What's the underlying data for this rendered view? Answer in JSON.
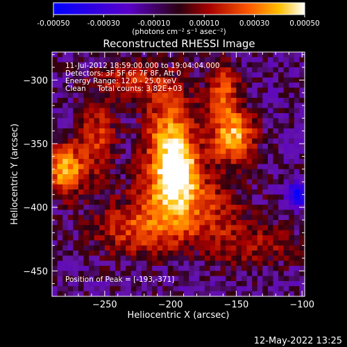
{
  "chart_data": {
    "type": "heatmap",
    "title": "Reconstructed RHESSI Image",
    "xlabel": "Heliocentric X (arcsec)",
    "ylabel": "Heliocentric Y (arcsec)",
    "xlim": [
      -290,
      -98
    ],
    "ylim": [
      -470,
      -278
    ],
    "x_ticks": [
      -250,
      -200,
      -150,
      -100
    ],
    "y_ticks": [
      -300,
      -350,
      -400,
      -450
    ],
    "colorbar": {
      "min": -0.0005,
      "max": 0.0005,
      "ticks": [
        "-0.00050",
        "-0.00030",
        "-0.00010",
        "0.00010",
        "0.00030",
        "0.00050"
      ],
      "units_label": "(photons cm⁻² s⁻¹ asec⁻²)"
    },
    "annotations": [
      "11-Jul-2012 18:59:00.000 to 19:04:04.000",
      "Detectors: 3F 5F 6F 7F 8F, Att 0",
      "Energy Range: 12.0 - 25.0 keV",
      "Clean     Total counts: 3.82E+03"
    ],
    "peak_label": "Position of Peak = [-193,-371]",
    "peak": {
      "x": -193,
      "y": -371
    },
    "sources": [
      {
        "x": -200,
        "y": -355,
        "sx": 14,
        "sy": 32,
        "amp": 0.00048
      },
      {
        "x": -193,
        "y": -371,
        "sx": 9,
        "sy": 12,
        "amp": 0.0003
      },
      {
        "x": -188,
        "y": -400,
        "sx": 28,
        "sy": 18,
        "amp": 0.0003
      },
      {
        "x": -152,
        "y": -345,
        "sx": 12,
        "sy": 14,
        "amp": 0.00045
      },
      {
        "x": -160,
        "y": -310,
        "sx": 9,
        "sy": 16,
        "amp": 0.0003
      },
      {
        "x": -280,
        "y": -370,
        "sx": 10,
        "sy": 14,
        "amp": 0.00045
      },
      {
        "x": -255,
        "y": -345,
        "sx": 10,
        "sy": 22,
        "amp": 0.00025
      },
      {
        "x": -230,
        "y": -300,
        "sx": 18,
        "sy": 10,
        "amp": 0.00022
      },
      {
        "x": -230,
        "y": -420,
        "sx": 22,
        "sy": 14,
        "amp": 0.00022
      },
      {
        "x": -140,
        "y": -430,
        "sx": 25,
        "sy": 12,
        "amp": 0.00018
      }
    ],
    "background": -6e-05,
    "minimum": {
      "x": -103,
      "y": -390,
      "amp": -0.00045
    }
  },
  "footer": {
    "timestamp": "12-May-2022 13:25"
  }
}
